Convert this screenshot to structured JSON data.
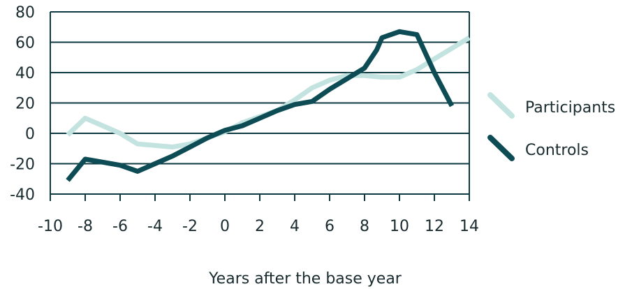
{
  "chart_data": {
    "type": "line",
    "xlabel": "Years after the base year",
    "ylabel": "",
    "xlim": [
      -10,
      14
    ],
    "ylim": [
      -40,
      80
    ],
    "xticks": [
      -10,
      -8,
      -6,
      -4,
      -2,
      0,
      2,
      4,
      6,
      8,
      10,
      12,
      14
    ],
    "yticks": [
      80,
      60,
      40,
      20,
      0,
      -20,
      -40
    ],
    "grid": "horizontal",
    "legend_position": "right",
    "series": [
      {
        "name": "Participants",
        "color": "#c2e3df",
        "x": [
          -9,
          -8,
          -7,
          -6,
          -5,
          -4,
          -3,
          -2,
          -1,
          0,
          1,
          2,
          3,
          4,
          5,
          6,
          7,
          8,
          9,
          10,
          11,
          12,
          13,
          14
        ],
        "y": [
          -1,
          10,
          5,
          0,
          -7,
          -8,
          -9,
          -7,
          -3,
          1,
          7,
          11,
          15,
          22,
          30,
          35,
          38,
          38,
          37,
          37,
          42,
          49,
          56,
          63
        ]
      },
      {
        "name": "Controls",
        "color": "#0d4b55",
        "x": [
          -9,
          -8,
          -7,
          -6,
          -5,
          -4,
          -3,
          -2,
          -1,
          0,
          1,
          2,
          3,
          4,
          5,
          6,
          7,
          8,
          8.7,
          9,
          10,
          11,
          12,
          13
        ],
        "y": [
          -31,
          -17,
          -19,
          -21,
          -25,
          -20,
          -15,
          -9,
          -3,
          2,
          5,
          10,
          15,
          19,
          21,
          29,
          36,
          43,
          55,
          63,
          67,
          65,
          40,
          18
        ]
      }
    ]
  }
}
